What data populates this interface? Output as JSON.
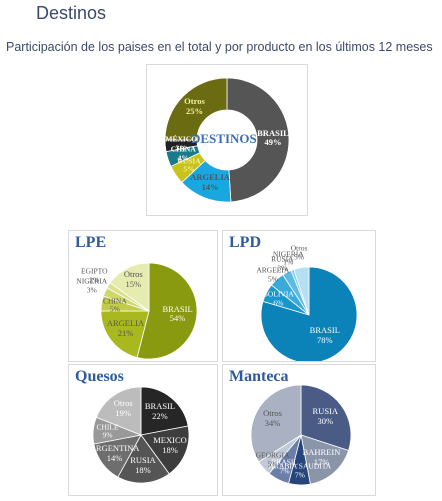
{
  "page": {
    "title": "Destinos",
    "subtitle": "Participación de los paises en el total y por producto en los últimos 12 meses"
  },
  "chart_data": [
    {
      "type": "pie",
      "title": "DESTINOS",
      "donut": true,
      "slices": [
        {
          "label": "BRASIL",
          "value": 49,
          "value_label": "49%",
          "color": "#555555"
        },
        {
          "label": "ARGELIA",
          "value": 14,
          "value_label": "14%",
          "color": "#1aa7df"
        },
        {
          "label": "RUSIA",
          "value": 5,
          "value_label": "5%",
          "color": "#c8c21a"
        },
        {
          "label": "CHINA",
          "value": 4,
          "value_label": "4%",
          "color": "#1a7a8a"
        },
        {
          "label": "MÉXICO",
          "value": 3,
          "value_label": "3%",
          "color": "#222222"
        },
        {
          "label": "Otros",
          "value": 25,
          "value_label": "25%",
          "color": "#6b6b12"
        }
      ]
    },
    {
      "type": "pie",
      "title": "LPE",
      "slices": [
        {
          "label": "BRASIL",
          "value": 54,
          "value_label": "54%",
          "color": "#8a9a10"
        },
        {
          "label": "ARGELIA",
          "value": 21,
          "value_label": "21%",
          "color": "#a9b81f"
        },
        {
          "label": "CHINA",
          "value": 5,
          "value_label": "5%",
          "color": "#c2cc4a"
        },
        {
          "label": "NIGERIA",
          "value": 3,
          "value_label": "3%",
          "color": "#cfd76b"
        },
        {
          "label": "EGIPTO",
          "value": 2,
          "value_label": "2%",
          "color": "#dbe18a"
        },
        {
          "label": "Otros",
          "value": 15,
          "value_label": "15%",
          "color": "#e6ebb0"
        }
      ]
    },
    {
      "type": "pie",
      "title": "LPD",
      "slices": [
        {
          "label": "BRASIL",
          "value": 78,
          "value_label": "78%",
          "color": "#0b82b8"
        },
        {
          "label": "BOLIVIA",
          "value": 6,
          "value_label": "6%",
          "color": "#1996cc"
        },
        {
          "label": "ARGELIA",
          "value": 5,
          "value_label": "5%",
          "color": "#3aaadb"
        },
        {
          "label": "RUSIA",
          "value": 3,
          "value_label": "3%",
          "color": "#5bbbe3"
        },
        {
          "label": "NIGERIA",
          "value": 1,
          "value_label": "1%",
          "color": "#87cfec"
        },
        {
          "label": "Otros",
          "value": 5,
          "value_label": "5%",
          "color": "#b3e0f3"
        }
      ]
    },
    {
      "type": "pie",
      "title": "Quesos",
      "slices": [
        {
          "label": "BRASIL",
          "value": 22,
          "value_label": "22%",
          "color": "#262626"
        },
        {
          "label": "MEXICO",
          "value": 18,
          "value_label": "18%",
          "color": "#3d3d3d"
        },
        {
          "label": "RUSIA",
          "value": 18,
          "value_label": "18%",
          "color": "#555555"
        },
        {
          "label": "ARGENTINA",
          "value": 14,
          "value_label": "14%",
          "color": "#6e6e6e"
        },
        {
          "label": "CHILE",
          "value": 9,
          "value_label": "9%",
          "color": "#999999"
        },
        {
          "label": "Otros",
          "value": 19,
          "value_label": "19%",
          "color": "#bcbcbc"
        }
      ]
    },
    {
      "type": "pie",
      "title": "Manteca",
      "slices": [
        {
          "label": "RUSIA",
          "value": 30,
          "value_label": "30%",
          "color": "#4a5c86"
        },
        {
          "label": "BAHREIN",
          "value": 17,
          "value_label": "17%",
          "color": "#8b95aa"
        },
        {
          "label": "ARABIA SAUDITA",
          "value": 7,
          "value_label": "7%",
          "color": "#26457a"
        },
        {
          "label": "BRASIL",
          "value": 7,
          "value_label": "7%",
          "color": "#6a7ea8"
        },
        {
          "label": "GEORGIA",
          "value": 5,
          "value_label": "5%",
          "color": "#c1c8d8"
        },
        {
          "label": "Otros",
          "value": 34,
          "value_label": "34%",
          "color": "#aab1c2"
        }
      ]
    }
  ]
}
